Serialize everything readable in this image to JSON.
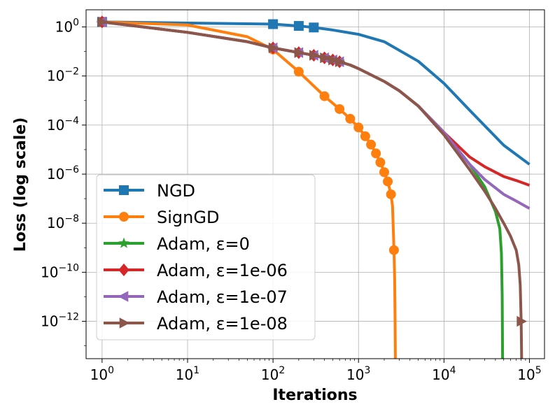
{
  "chart_data": {
    "type": "line",
    "title": "",
    "xlabel": "Iterations",
    "ylabel": "Loss (log scale)",
    "xscale": "log",
    "yscale": "log",
    "xlim": [
      0.65,
      150000
    ],
    "ylim": [
      3e-14,
      5
    ],
    "grid": true,
    "legend_position": "lower-left",
    "x_ticks": [
      {
        "value": 1,
        "base": "10",
        "exp": "0"
      },
      {
        "value": 10,
        "base": "10",
        "exp": "1"
      },
      {
        "value": 100,
        "base": "10",
        "exp": "2"
      },
      {
        "value": 1000,
        "base": "10",
        "exp": "3"
      },
      {
        "value": 10000,
        "base": "10",
        "exp": "4"
      },
      {
        "value": 100000,
        "base": "10",
        "exp": "5"
      }
    ],
    "y_ticks": [
      {
        "value": 1,
        "base": "10",
        "exp": "0"
      },
      {
        "value": 0.01,
        "base": "10",
        "exp": "−2"
      },
      {
        "value": 0.0001,
        "base": "10",
        "exp": "−4"
      },
      {
        "value": 1e-06,
        "base": "10",
        "exp": "−6"
      },
      {
        "value": 1e-08,
        "base": "10",
        "exp": "−8"
      },
      {
        "value": 1e-10,
        "base": "10",
        "exp": "−10"
      },
      {
        "value": 1e-12,
        "base": "10",
        "exp": "−12"
      }
    ],
    "series": [
      {
        "name": "NGD",
        "color": "#1f77b4",
        "marker": "square",
        "x": [
          1,
          100,
          200,
          300,
          500,
          1000,
          2000,
          5000,
          10000,
          20000,
          50000,
          100000
        ],
        "y": [
          1.6,
          1.3,
          1.1,
          0.95,
          0.75,
          0.5,
          0.25,
          0.04,
          0.005,
          0.0004,
          1.5e-05,
          2.5e-06
        ],
        "markers": [
          1,
          100,
          200,
          300
        ]
      },
      {
        "name": "SignGD",
        "color": "#ff7f0e",
        "marker": "circle",
        "x": [
          1,
          10,
          50,
          100,
          200,
          400,
          600,
          800,
          1000,
          1200,
          1400,
          1600,
          1800,
          2000,
          2200,
          2400,
          2500,
          2600,
          2650,
          2680,
          2700
        ],
        "y": [
          1.6,
          1.2,
          0.4,
          0.12,
          0.015,
          0.0015,
          0.00045,
          0.00018,
          8e-05,
          3.5e-05,
          1.6e-05,
          7e-06,
          3e-06,
          1.2e-06,
          5e-07,
          1.5e-07,
          5e-08,
          8e-10,
          5e-11,
          1e-12,
          3e-14
        ],
        "markers": [
          1,
          100,
          200,
          400,
          600,
          800,
          1000,
          1200,
          1400,
          1600,
          1800,
          2000,
          2200,
          2400,
          2600
        ]
      },
      {
        "name": "Adam, ε=0",
        "color": "#2ca02c",
        "marker": "star",
        "x": [
          1,
          10,
          50,
          100,
          200,
          300,
          400,
          500,
          600,
          800,
          1000,
          2000,
          3000,
          5000,
          10000,
          20000,
          30000,
          40000,
          45000,
          47000,
          48000,
          48500
        ],
        "y": [
          1.6,
          0.6,
          0.25,
          0.14,
          0.09,
          0.07,
          0.055,
          0.045,
          0.038,
          0.028,
          0.02,
          0.006,
          0.0025,
          0.0006,
          5e-05,
          2.5e-06,
          3e-07,
          3e-08,
          6e-09,
          6e-10,
          1e-11,
          3e-14
        ],
        "markers": [
          1,
          100,
          200,
          300,
          400,
          500,
          600
        ]
      },
      {
        "name": "Adam, ε=1e-06",
        "color": "#d62728",
        "marker": "diamond",
        "x": [
          1,
          10,
          50,
          100,
          200,
          300,
          400,
          500,
          600,
          800,
          1000,
          2000,
          3000,
          5000,
          10000,
          20000,
          30000,
          50000,
          70000,
          100000
        ],
        "y": [
          1.6,
          0.6,
          0.25,
          0.14,
          0.09,
          0.07,
          0.055,
          0.045,
          0.038,
          0.028,
          0.02,
          0.006,
          0.0025,
          0.0006,
          5e-05,
          5e-06,
          2e-06,
          8e-07,
          5.5e-07,
          3.5e-07
        ],
        "markers": [
          1,
          100,
          200,
          300,
          400,
          500,
          600
        ]
      },
      {
        "name": "Adam, ε=1e-07",
        "color": "#9467bd",
        "marker": "triangle-left",
        "x": [
          1,
          10,
          50,
          100,
          200,
          300,
          400,
          500,
          600,
          800,
          1000,
          2000,
          3000,
          5000,
          10000,
          20000,
          30000,
          50000,
          70000,
          100000
        ],
        "y": [
          1.6,
          0.6,
          0.25,
          0.14,
          0.09,
          0.07,
          0.055,
          0.045,
          0.038,
          0.028,
          0.02,
          0.006,
          0.0025,
          0.0006,
          5e-05,
          2.5e-06,
          6e-07,
          1.5e-07,
          8e-08,
          4e-08
        ],
        "markers": [
          1,
          100,
          200,
          300,
          400,
          500,
          600
        ]
      },
      {
        "name": "Adam, ε=1e-08",
        "color": "#8c564b",
        "marker": "triangle-right",
        "x": [
          1,
          10,
          50,
          100,
          200,
          300,
          400,
          500,
          600,
          800,
          1000,
          2000,
          3000,
          5000,
          10000,
          20000,
          30000,
          40000,
          50000,
          60000,
          70000,
          75000,
          78000,
          80000,
          81000
        ],
        "y": [
          1.6,
          0.6,
          0.25,
          0.14,
          0.09,
          0.07,
          0.055,
          0.045,
          0.038,
          0.028,
          0.02,
          0.006,
          0.0025,
          0.0006,
          4e-05,
          1.5e-06,
          2e-07,
          4e-08,
          1e-08,
          3e-09,
          8e-10,
          2e-10,
          3e-11,
          1e-12,
          3e-14
        ],
        "markers": [
          1,
          100,
          200,
          300,
          400,
          500,
          600,
          80000
        ]
      }
    ]
  }
}
